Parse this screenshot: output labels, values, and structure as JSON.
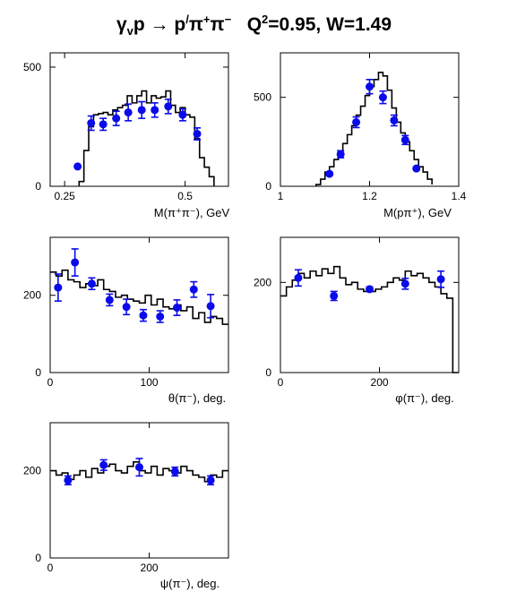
{
  "title": {
    "reaction_main": "γ",
    "reaction_sub": "v",
    "reaction_rest": "p → p",
    "reaction_prime": "/",
    "reaction_pi1": "π",
    "reaction_pi1_charge": "+",
    "reaction_pi2": "π",
    "reaction_pi2_charge": "−",
    "q_label": "Q",
    "q_exp": "2",
    "q_value": "=0.95, W=1.49"
  },
  "chart_data": [
    {
      "type": "line",
      "xlabel": "M(π⁺π⁻), GeV",
      "xlim": [
        0.22,
        0.59
      ],
      "ylim": [
        0,
        560
      ],
      "xticks": [
        {
          "v": 0.25,
          "label": "0.25"
        },
        {
          "v": 0.5,
          "label": "0.5"
        }
      ],
      "yticks": [
        {
          "v": 0,
          "label": "0"
        },
        {
          "v": 500,
          "label": "500"
        }
      ],
      "histogram": {
        "edges": [
          0.28,
          0.29,
          0.3,
          0.31,
          0.32,
          0.33,
          0.34,
          0.35,
          0.36,
          0.37,
          0.38,
          0.39,
          0.4,
          0.41,
          0.42,
          0.43,
          0.44,
          0.45,
          0.46,
          0.47,
          0.48,
          0.49,
          0.5,
          0.51,
          0.52,
          0.53,
          0.54,
          0.55,
          0.56
        ],
        "values": [
          20,
          150,
          250,
          300,
          305,
          310,
          300,
          320,
          330,
          340,
          380,
          350,
          380,
          400,
          350,
          380,
          370,
          375,
          400,
          340,
          310,
          330,
          300,
          290,
          200,
          120,
          80,
          40
        ]
      },
      "points": {
        "x": [
          0.277,
          0.305,
          0.33,
          0.357,
          0.382,
          0.41,
          0.437,
          0.465,
          0.495,
          0.525
        ],
        "y": [
          83,
          265,
          260,
          285,
          310,
          320,
          320,
          335,
          300,
          220
        ],
        "err": [
          0,
          30,
          25,
          30,
          35,
          35,
          30,
          30,
          25,
          25
        ]
      }
    },
    {
      "type": "line",
      "xlabel": "M(pπ⁺), GeV",
      "xlim": [
        1.0,
        1.4
      ],
      "ylim": [
        0,
        750
      ],
      "xticks": [
        {
          "v": 1.0,
          "label": "1"
        },
        {
          "v": 1.2,
          "label": "1.2"
        },
        {
          "v": 1.4,
          "label": "1.4"
        }
      ],
      "yticks": [
        {
          "v": 0,
          "label": "0"
        },
        {
          "v": 500,
          "label": "500"
        }
      ],
      "histogram": {
        "edges": [
          1.08,
          1.09,
          1.1,
          1.11,
          1.12,
          1.13,
          1.14,
          1.15,
          1.16,
          1.17,
          1.18,
          1.19,
          1.2,
          1.21,
          1.22,
          1.23,
          1.24,
          1.25,
          1.26,
          1.27,
          1.28,
          1.29,
          1.3,
          1.31,
          1.32,
          1.33,
          1.34
        ],
        "values": [
          10,
          40,
          80,
          110,
          150,
          190,
          240,
          290,
          340,
          400,
          450,
          510,
          560,
          600,
          640,
          620,
          540,
          440,
          360,
          300,
          250,
          200,
          150,
          110,
          80,
          40,
          10
        ]
      },
      "points": {
        "x": [
          1.11,
          1.135,
          1.17,
          1.2,
          1.23,
          1.255,
          1.28,
          1.305
        ],
        "y": [
          70,
          180,
          360,
          560,
          500,
          370,
          260,
          100
        ],
        "err": [
          0,
          20,
          30,
          40,
          35,
          30,
          25,
          0
        ]
      }
    },
    {
      "type": "line",
      "xlabel": "θ(π⁻), deg.",
      "xlim": [
        0,
        180
      ],
      "ylim": [
        0,
        350
      ],
      "xticks": [
        {
          "v": 0,
          "label": "0"
        },
        {
          "v": 100,
          "label": "100"
        }
      ],
      "yticks": [
        {
          "v": 0,
          "label": "0"
        },
        {
          "v": 200,
          "label": "200"
        }
      ],
      "histogram": {
        "edges": [
          0,
          6,
          12,
          18,
          24,
          30,
          36,
          42,
          48,
          54,
          60,
          66,
          72,
          78,
          84,
          90,
          96,
          102,
          108,
          114,
          120,
          126,
          132,
          138,
          144,
          150,
          156,
          162,
          168,
          174,
          180
        ],
        "values": [
          260,
          250,
          265,
          240,
          235,
          220,
          230,
          225,
          240,
          215,
          210,
          195,
          200,
          190,
          185,
          180,
          200,
          175,
          190,
          170,
          165,
          175,
          160,
          170,
          140,
          155,
          130,
          145,
          140,
          125
        ],
        "stepped_only": true
      },
      "points": {
        "x": [
          8,
          25,
          42,
          60,
          77,
          94,
          111,
          128,
          145,
          162
        ],
        "y": [
          220,
          285,
          230,
          188,
          170,
          148,
          145,
          168,
          215,
          172
        ],
        "err": [
          35,
          35,
          15,
          15,
          20,
          15,
          15,
          20,
          20,
          30
        ]
      }
    },
    {
      "type": "line",
      "xlabel": "φ(π⁻), deg.",
      "xlim": [
        0,
        360
      ],
      "ylim": [
        0,
        300
      ],
      "xticks": [
        {
          "v": 0,
          "label": "0"
        },
        {
          "v": 200,
          "label": "200"
        }
      ],
      "yticks": [
        {
          "v": 0,
          "label": "0"
        },
        {
          "v": 200,
          "label": "200"
        }
      ],
      "histogram": {
        "edges": [
          0,
          12,
          24,
          36,
          48,
          60,
          72,
          84,
          96,
          108,
          120,
          132,
          144,
          156,
          168,
          180,
          192,
          204,
          216,
          228,
          240,
          252,
          264,
          276,
          288,
          300,
          312,
          324,
          336,
          348,
          360
        ],
        "values": [
          170,
          190,
          205,
          220,
          210,
          225,
          215,
          230,
          220,
          235,
          210,
          195,
          200,
          185,
          180,
          180,
          185,
          190,
          200,
          210,
          205,
          225,
          215,
          220,
          210,
          200,
          190,
          175,
          165,
          0
        ],
        "stepped_only": true
      },
      "points": {
        "x": [
          36,
          108,
          180,
          252,
          324
        ],
        "y": [
          210,
          170,
          185,
          197,
          207
        ],
        "err": [
          18,
          10,
          5,
          12,
          18
        ]
      }
    },
    {
      "type": "line",
      "xlabel": "ψ(π⁻), deg.",
      "xlim": [
        0,
        360
      ],
      "ylim": [
        0,
        310
      ],
      "xticks": [
        {
          "v": 0,
          "label": "0"
        },
        {
          "v": 200,
          "label": "200"
        }
      ],
      "yticks": [
        {
          "v": 0,
          "label": "0"
        },
        {
          "v": 200,
          "label": "200"
        }
      ],
      "histogram": {
        "edges": [
          0,
          12,
          24,
          36,
          48,
          60,
          72,
          84,
          96,
          108,
          120,
          132,
          144,
          156,
          168,
          180,
          192,
          204,
          216,
          228,
          240,
          252,
          264,
          276,
          288,
          300,
          312,
          324,
          336,
          348,
          360
        ],
        "values": [
          200,
          190,
          195,
          180,
          190,
          200,
          185,
          205,
          195,
          210,
          215,
          200,
          195,
          210,
          220,
          200,
          195,
          210,
          190,
          205,
          200,
          195,
          210,
          200,
          190,
          185,
          175,
          190,
          185,
          200
        ],
        "stepped_only": true
      },
      "points": {
        "x": [
          36,
          108,
          180,
          252,
          324
        ],
        "y": [
          178,
          213,
          208,
          198,
          178
        ],
        "err": [
          10,
          12,
          20,
          10,
          10
        ]
      }
    }
  ],
  "colors": {
    "points": "#0a0aeb",
    "histogram": "#000000",
    "axes": "#000000"
  }
}
